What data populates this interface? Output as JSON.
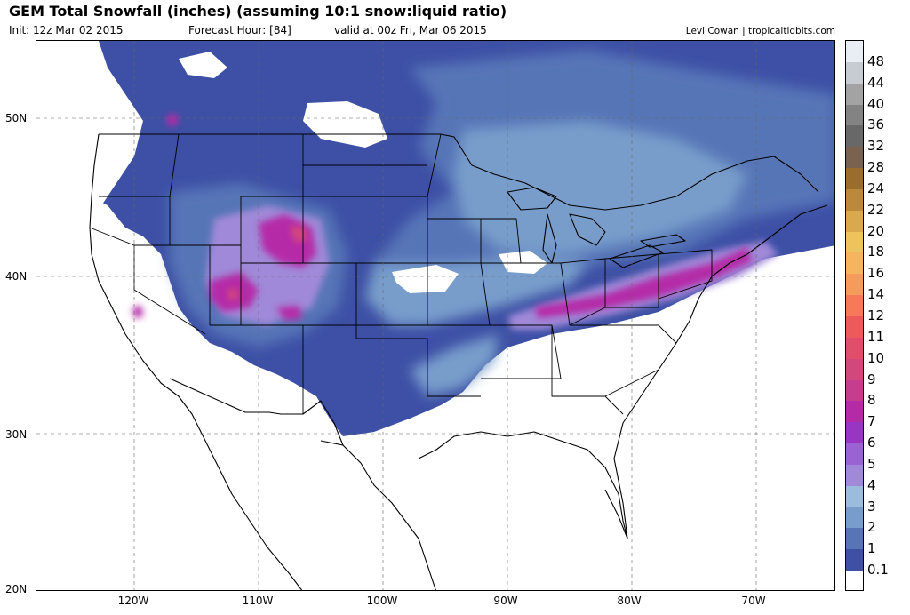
{
  "header": {
    "title": "GEM Total Snowfall (inches) (assuming 10:1 snow:liquid ratio)",
    "init": "Init: 12z Mar 02 2015",
    "forecast_hour": "Forecast Hour: [84]",
    "valid": "valid at 00z Fri, Mar 06 2015",
    "credit": "Levi Cowan | tropicaltidbits.com"
  },
  "map": {
    "lat_labels": [
      "50N",
      "40N",
      "30N",
      "20N"
    ],
    "lon_labels": [
      "120W",
      "110W",
      "100W",
      "90W",
      "80W",
      "70W"
    ]
  },
  "legend": {
    "levels": [
      "0.1",
      "1",
      "2",
      "3",
      "4",
      "5",
      "6",
      "7",
      "8",
      "9",
      "10",
      "11",
      "12",
      "14",
      "16",
      "18",
      "20",
      "22",
      "24",
      "28",
      "32",
      "36",
      "40",
      "44",
      "48"
    ],
    "colors": [
      "#ffffff",
      "#3d50a5",
      "#5774b7",
      "#789dcb",
      "#9bbddb",
      "#a089d8",
      "#9a62d2",
      "#9935c4",
      "#b52ba7",
      "#c53d8e",
      "#d1487c",
      "#df4f6b",
      "#ec5b5c",
      "#f57a57",
      "#f79b5a",
      "#f6b45c",
      "#edc45c",
      "#d9a94c",
      "#bc893a",
      "#9b6d2d",
      "#7a6250",
      "#686868",
      "#838383",
      "#a3a3a3",
      "#c6ccd2",
      "#e8eef4"
    ]
  }
}
